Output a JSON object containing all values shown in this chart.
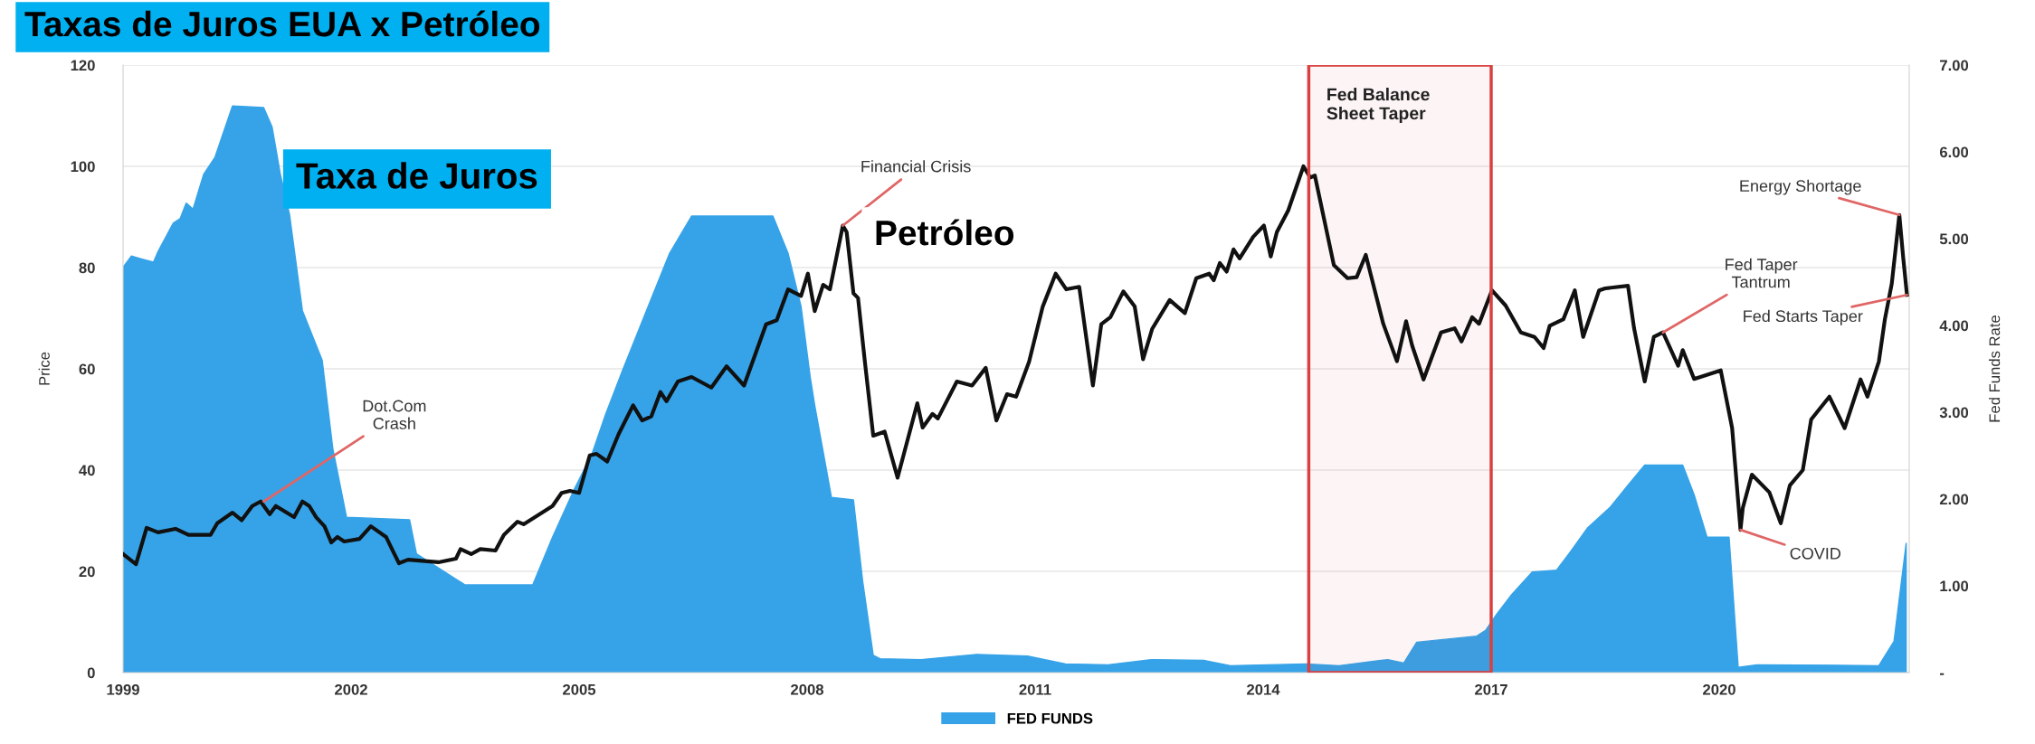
{
  "chart_data": {
    "type": "line",
    "title": "Taxas de Juros EUA x Petróleo",
    "ylabel": "Price",
    "y2label": "Fed Funds Rate",
    "annotations": [
      "Taxa de Juros",
      "Petróleo",
      {
        "text": "Dot.Com\nCrash",
        "x": 2000.85,
        "y": 33.8
      },
      {
        "text": "Financial Crisis",
        "x": 2008.47,
        "y": 88.3
      },
      {
        "text": "Energy Shortage",
        "x": 2022.37,
        "y": 90.4
      },
      {
        "text": "Fed Taper\nTantrum",
        "x": 2019.26,
        "y": 67.2
      },
      {
        "text": "Fed Starts Taper",
        "x": 2022.47,
        "y": 74.6
      },
      {
        "text": "COVID",
        "x": 2020.28,
        "y": 28.2
      }
    ],
    "series": [
      {
        "name": "FED FUNDS",
        "type": "area",
        "axis": "y2",
        "color": "#36a3e8",
        "x": [
          1999.0,
          1999.11,
          1999.23,
          1999.4,
          1999.46,
          1999.66,
          1999.75,
          1999.83,
          1999.92,
          2000.06,
          2000.21,
          2000.44,
          2000.85,
          2000.96,
          2001.07,
          2001.19,
          2001.36,
          2001.62,
          2001.76,
          2001.94,
          2002.77,
          2002.86,
          2003.5,
          2004.39,
          2004.65,
          2004.94,
          2005.17,
          2005.35,
          2005.57,
          2005.9,
          2006.19,
          2006.48,
          2007.55,
          2007.75,
          2007.92,
          2008.04,
          2008.1,
          2008.32,
          2008.61,
          2008.73,
          2008.87,
          2008.96,
          2009.5,
          2010.23,
          2010.9,
          2011.4,
          2011.96,
          2012.54,
          2013.23,
          2013.57,
          2014.56,
          2015.0,
          2015.64,
          2015.85,
          2016.02,
          2016.81,
          2016.93,
          2017.07,
          2017.27,
          2017.54,
          2017.86,
          2018.04,
          2018.27,
          2018.56,
          2018.8,
          2019.02,
          2019.52,
          2019.67,
          2019.84,
          2020.13,
          2020.25,
          2020.5,
          2022.1,
          2022.3,
          2022.46
        ],
        "values": [
          4.67,
          4.8,
          4.77,
          4.73,
          4.85,
          5.18,
          5.23,
          5.41,
          5.34,
          5.74,
          5.94,
          6.53,
          6.51,
          6.29,
          5.74,
          5.28,
          4.17,
          3.6,
          2.58,
          1.79,
          1.76,
          1.37,
          1.01,
          1.01,
          1.56,
          2.12,
          2.52,
          2.98,
          3.48,
          4.2,
          4.83,
          5.26,
          5.26,
          4.83,
          4.22,
          3.41,
          3.08,
          2.02,
          1.99,
          1.06,
          0.2,
          0.16,
          0.15,
          0.21,
          0.19,
          0.1,
          0.09,
          0.15,
          0.14,
          0.08,
          0.1,
          0.08,
          0.15,
          0.11,
          0.35,
          0.42,
          0.49,
          0.67,
          0.9,
          1.16,
          1.18,
          1.39,
          1.67,
          1.9,
          2.16,
          2.39,
          2.39,
          2.05,
          1.56,
          1.56,
          0.06,
          0.09,
          0.08,
          0.36,
          1.49
        ]
      },
      {
        "color": "#111111",
        "x": [
          1999.0,
          1999.17,
          1999.31,
          1999.46,
          1999.69,
          1999.86,
          2000.15,
          2000.24,
          2000.44,
          2000.56,
          2000.7,
          2000.81,
          2000.93,
          2001.01,
          2001.25,
          2001.36,
          2001.45,
          2001.54,
          2001.65,
          2001.74,
          2001.82,
          2001.91,
          2002.11,
          2002.26,
          2002.46,
          2002.57,
          2002.63,
          2002.75,
          2003.15,
          2003.38,
          2003.44,
          2003.58,
          2003.7,
          2003.9,
          2004.01,
          2004.19,
          2004.27,
          2004.42,
          2004.65,
          2004.77,
          2004.88,
          2005.0,
          2005.14,
          2005.23,
          2005.37,
          2005.52,
          2005.71,
          2005.83,
          2005.95,
          2006.07,
          2006.15,
          2006.3,
          2006.48,
          2006.74,
          2006.94,
          2007.17,
          2007.46,
          2007.6,
          2007.75,
          2007.92,
          2008.01,
          2008.1,
          2008.21,
          2008.3,
          2008.47,
          2008.52,
          2008.61,
          2008.67,
          2008.76,
          2008.87,
          2009.02,
          2009.19,
          2009.45,
          2009.52,
          2009.65,
          2009.72,
          2009.97,
          2010.17,
          2010.35,
          2010.49,
          2010.63,
          2010.75,
          2010.92,
          2011.1,
          2011.27,
          2011.41,
          2011.58,
          2011.76,
          2011.87,
          2011.99,
          2012.16,
          2012.31,
          2012.42,
          2012.54,
          2012.77,
          2012.97,
          2013.12,
          2013.29,
          2013.35,
          2013.43,
          2013.52,
          2013.61,
          2013.69,
          2013.87,
          2014.01,
          2014.1,
          2014.18,
          2014.33,
          2014.53,
          2014.62,
          2014.68,
          2014.79,
          2014.93,
          2015.11,
          2015.23,
          2015.35,
          2015.58,
          2015.76,
          2015.88,
          2015.96,
          2016.11,
          2016.34,
          2016.52,
          2016.61,
          2016.75,
          2016.84,
          2017.01,
          2017.19,
          2017.39,
          2017.57,
          2017.69,
          2017.77,
          2017.95,
          2018.1,
          2018.21,
          2018.42,
          2018.5,
          2018.8,
          2018.88,
          2019.02,
          2019.14,
          2019.26,
          2019.46,
          2019.52,
          2019.67,
          2020.02,
          2020.17,
          2020.28,
          2020.31,
          2020.43,
          2020.66,
          2020.81,
          2020.93,
          2021.1,
          2021.21,
          2021.45,
          2021.65,
          2021.86,
          2021.95,
          2022.1,
          2022.18,
          2022.27,
          2022.37,
          2022.42,
          2022.47
        ],
        "values": [
          23.4,
          21.4,
          28.6,
          27.7,
          28.4,
          27.2,
          27.2,
          29.5,
          31.6,
          30.1,
          32.9,
          33.8,
          31.3,
          32.9,
          30.7,
          33.8,
          32.9,
          30.7,
          28.9,
          25.7,
          26.8,
          25.9,
          26.4,
          28.9,
          26.8,
          23.4,
          21.6,
          22.3,
          21.8,
          22.5,
          24.4,
          23.4,
          24.4,
          24.1,
          27.2,
          29.8,
          29.3,
          30.7,
          32.9,
          35.5,
          35.9,
          35.5,
          42.9,
          43.2,
          41.7,
          47.1,
          52.8,
          49.8,
          50.6,
          55.4,
          53.6,
          57.5,
          58.4,
          56.3,
          60.5,
          56.7,
          68.8,
          69.6,
          75.7,
          74.4,
          78.8,
          71.4,
          76.6,
          75.7,
          88.3,
          87.0,
          74.9,
          74.0,
          61.4,
          46.8,
          47.6,
          38.5,
          53.2,
          48.4,
          51.1,
          50.2,
          57.5,
          56.7,
          60.2,
          49.8,
          55.0,
          54.5,
          61.4,
          72.3,
          78.8,
          75.7,
          76.2,
          56.7,
          68.8,
          70.2,
          75.3,
          72.3,
          61.9,
          67.9,
          73.6,
          71.0,
          77.9,
          78.8,
          77.5,
          80.9,
          79.2,
          83.6,
          81.8,
          86.1,
          88.3,
          82.2,
          87.0,
          91.3,
          100.0,
          97.8,
          98.2,
          90.4,
          80.5,
          77.9,
          78.1,
          82.5,
          68.9,
          61.5,
          69.4,
          64.6,
          57.9,
          67.2,
          68.0,
          65.4,
          70.2,
          68.9,
          75.5,
          72.5,
          67.2,
          66.3,
          64.1,
          68.5,
          69.8,
          75.5,
          66.3,
          75.5,
          75.9,
          76.4,
          68.0,
          57.5,
          66.3,
          67.2,
          60.6,
          63.7,
          58.0,
          59.7,
          48.3,
          28.2,
          32.5,
          39.1,
          35.6,
          29.5,
          37.0,
          40.0,
          50.0,
          54.5,
          48.3,
          57.9,
          54.5,
          61.4,
          69.8,
          76.8,
          90.4,
          82.1,
          74.6
        ]
      }
    ],
    "xlim": [
      1999,
      2022.5
    ],
    "xticks": [
      1999,
      2002,
      2005,
      2008,
      2011,
      2014,
      2017,
      2020
    ],
    "ylim": [
      0,
      120
    ],
    "yticks": [
      0,
      20,
      40,
      60,
      80,
      100,
      120
    ],
    "y2lim": [
      0,
      7
    ],
    "y2ticks": [
      {
        "value": 0,
        "label": "-"
      },
      {
        "value": 1,
        "label": "1.00"
      },
      {
        "value": 2,
        "label": "2.00"
      },
      {
        "value": 3,
        "label": "3.00"
      },
      {
        "value": 4,
        "label": "4.00"
      },
      {
        "value": 5,
        "label": "5.00"
      },
      {
        "value": 6,
        "label": "6.00"
      },
      {
        "value": 7,
        "label": "7.00"
      }
    ],
    "bands": [
      {
        "axis": "x",
        "from": 2014.6,
        "to": 2017.0,
        "label": "Fed Balance\nSheet Taper",
        "color": "#d94040"
      }
    ],
    "grid": "y",
    "legend": "bottom"
  }
}
